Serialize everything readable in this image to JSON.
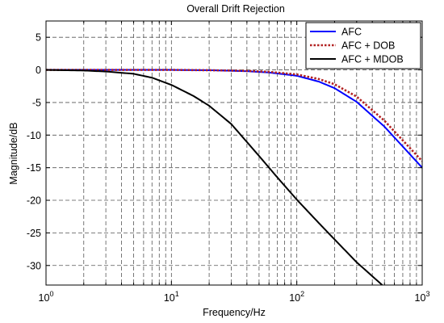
{
  "chart_data": {
    "type": "line",
    "title": "Overall Drift Rejection",
    "xlabel": "Frequency/Hz",
    "ylabel": "Magnitude/dB",
    "xscale": "log",
    "xlim": [
      1,
      1000
    ],
    "ylim": [
      -33,
      7.5
    ],
    "x_tick_labels": [
      {
        "x": 1,
        "base": "10",
        "exp": "0"
      },
      {
        "x": 10,
        "base": "10",
        "exp": "1"
      },
      {
        "x": 100,
        "base": "10",
        "exp": "2"
      },
      {
        "x": 1000,
        "base": "10",
        "exp": "3"
      }
    ],
    "y_ticks": [
      5,
      0,
      -5,
      -10,
      -15,
      -20,
      -25,
      -30
    ],
    "y_tick_labels": [
      "5",
      "0",
      "-5",
      "-10",
      "-15",
      "-20",
      "-25",
      "-30"
    ],
    "grid": true,
    "legend_position": "top-right",
    "series": [
      {
        "name": "AFC",
        "color": "#0000ff",
        "style": "solid",
        "x": [
          1,
          10,
          20,
          40,
          60,
          100,
          150,
          200,
          300,
          500,
          1000
        ],
        "y": [
          0,
          0,
          -0.05,
          -0.2,
          -0.4,
          -0.9,
          -1.8,
          -2.8,
          -4.9,
          -8.7,
          -15.0
        ]
      },
      {
        "name": "AFC + DOB",
        "color": "#b22222",
        "style": "dotted",
        "x": [
          1,
          10,
          20,
          40,
          60,
          100,
          150,
          200,
          300,
          500,
          1000
        ],
        "y": [
          0,
          0,
          -0.05,
          -0.15,
          -0.3,
          -0.7,
          -1.4,
          -2.2,
          -4.1,
          -7.8,
          -14.0
        ]
      },
      {
        "name": "AFC + MDOB",
        "color": "#000000",
        "style": "solid",
        "x": [
          1,
          2,
          3,
          5,
          7,
          10,
          15,
          20,
          30,
          50,
          70,
          100,
          150,
          200,
          300,
          480
        ],
        "y": [
          0,
          -0.1,
          -0.25,
          -0.6,
          -1.2,
          -2.3,
          -4.0,
          -5.5,
          -8.3,
          -13.2,
          -16.5,
          -19.9,
          -23.5,
          -26.0,
          -29.5,
          -33
        ]
      }
    ]
  }
}
